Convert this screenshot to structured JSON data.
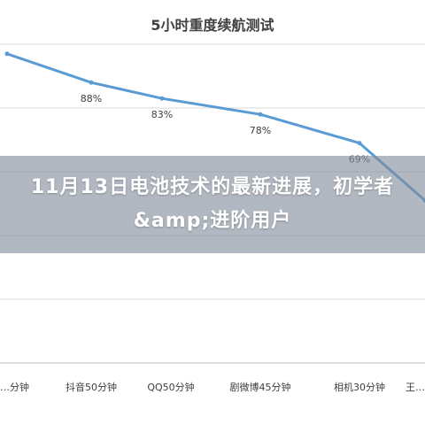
{
  "overlay": {
    "headline": "11月13日电池技术的最新进展，初学者&amp;进阶用户"
  },
  "colors": {
    "line": "#5b9bd5",
    "grid": "#d9d9d9",
    "label": "#404040",
    "title": "#404040"
  },
  "chart_data": {
    "type": "line",
    "title": "5小时重度续航测试",
    "xlabel": "",
    "ylabel": "",
    "ylim": [
      0,
      100
    ],
    "grid": true,
    "categories": [
      "…分钟",
      "抖音50分钟",
      "QQ50分钟",
      "剧微博45分钟",
      "相机30分钟",
      "王…"
    ],
    "values": [
      97,
      88,
      83,
      78,
      69,
      51
    ],
    "data_labels": [
      "",
      "88%",
      "83%",
      "78%",
      "69%",
      ""
    ]
  }
}
